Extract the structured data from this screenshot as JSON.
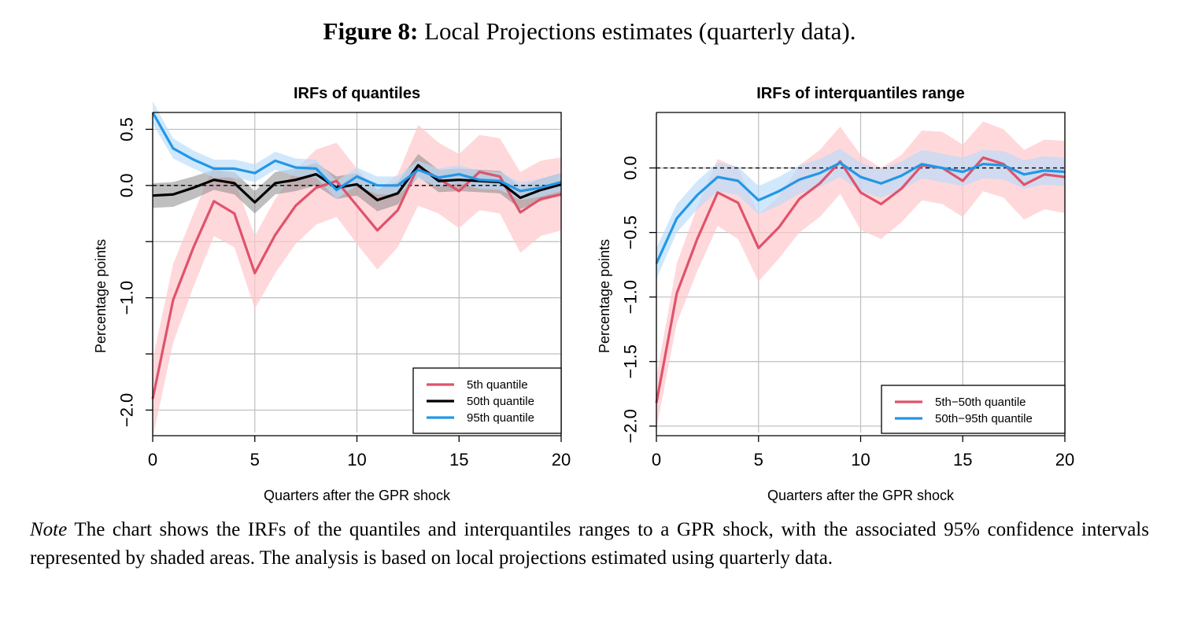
{
  "figure": {
    "label": "Figure 8:",
    "caption": "Local Projections estimates (quarterly data)."
  },
  "note": {
    "label": "Note",
    "text": "The chart shows the IRFs of the quantiles and interquantiles ranges to a GPR shock, with the associated 95% confidence intervals represented by shaded areas. The analysis is based on local projections estimated using quarterly data."
  },
  "colors": {
    "red": "#df536b",
    "black": "#000000",
    "blue": "#2297e6"
  },
  "chart_data": [
    {
      "type": "line",
      "title": "IRFs of quantiles",
      "xlabel": "Quarters after the GPR shock",
      "ylabel": "Percentage points",
      "xlim": [
        0,
        20
      ],
      "ylim": [
        -2.2,
        0.65
      ],
      "xticks": [
        0,
        5,
        10,
        15,
        20
      ],
      "yticks": [
        -2.0,
        -1.5,
        -1.0,
        -0.5,
        0.0,
        0.5
      ],
      "yticklabels": [
        "−2.0",
        "",
        "−1.0",
        "",
        "0.0",
        "0.5"
      ],
      "grid": true,
      "legend": "bottom-right",
      "x": [
        0,
        1,
        2,
        3,
        4,
        5,
        6,
        7,
        8,
        9,
        10,
        11,
        12,
        13,
        14,
        15,
        16,
        17,
        18,
        19,
        20
      ],
      "series": [
        {
          "name": "5th quantile",
          "color": "red",
          "values": [
            -1.9,
            -1.02,
            -0.55,
            -0.14,
            -0.25,
            -0.78,
            -0.44,
            -0.18,
            -0.02,
            0.04,
            -0.18,
            -0.4,
            -0.22,
            0.17,
            0.06,
            -0.05,
            0.12,
            0.08,
            -0.24,
            -0.12,
            -0.08
          ],
          "lower": [
            -2.25,
            -1.4,
            -0.9,
            -0.45,
            -0.55,
            -1.1,
            -0.78,
            -0.52,
            -0.35,
            -0.28,
            -0.52,
            -0.75,
            -0.55,
            -0.18,
            -0.25,
            -0.38,
            -0.22,
            -0.25,
            -0.6,
            -0.45,
            -0.4
          ],
          "upper": [
            -1.55,
            -0.7,
            -0.25,
            0.18,
            0.05,
            -0.45,
            -0.12,
            0.14,
            0.32,
            0.38,
            0.15,
            -0.05,
            0.1,
            0.54,
            0.38,
            0.28,
            0.45,
            0.42,
            0.12,
            0.22,
            0.25
          ]
        },
        {
          "name": "50th quantile",
          "color": "black",
          "values": [
            -0.09,
            -0.08,
            -0.02,
            0.05,
            0.02,
            -0.15,
            0.02,
            0.05,
            0.1,
            -0.02,
            0.01,
            -0.13,
            -0.07,
            0.18,
            0.04,
            0.05,
            0.04,
            0.03,
            -0.11,
            -0.04,
            0.01
          ],
          "lower": [
            -0.2,
            -0.19,
            -0.12,
            -0.04,
            -0.08,
            -0.25,
            -0.08,
            -0.05,
            0.0,
            -0.12,
            -0.09,
            -0.23,
            -0.17,
            0.08,
            -0.06,
            -0.05,
            -0.06,
            -0.07,
            -0.21,
            -0.14,
            -0.09
          ],
          "upper": [
            0.02,
            0.03,
            0.08,
            0.14,
            0.12,
            -0.05,
            0.12,
            0.15,
            0.2,
            0.08,
            0.11,
            -0.03,
            0.03,
            0.28,
            0.14,
            0.15,
            0.14,
            0.13,
            -0.01,
            0.06,
            0.11
          ]
        },
        {
          "name": "95th quantile",
          "color": "blue",
          "values": [
            0.65,
            0.33,
            0.23,
            0.15,
            0.15,
            0.11,
            0.22,
            0.16,
            0.15,
            -0.04,
            0.08,
            0.0,
            0.0,
            0.14,
            0.07,
            0.1,
            0.05,
            0.04,
            -0.05,
            -0.02,
            0.03
          ],
          "lower": [
            0.55,
            0.24,
            0.15,
            0.07,
            0.07,
            0.03,
            0.14,
            0.08,
            0.07,
            -0.12,
            0.0,
            -0.08,
            -0.08,
            0.06,
            -0.01,
            0.02,
            -0.03,
            -0.04,
            -0.13,
            -0.1,
            -0.05
          ],
          "upper": [
            0.75,
            0.42,
            0.31,
            0.23,
            0.23,
            0.19,
            0.3,
            0.24,
            0.23,
            0.04,
            0.16,
            0.08,
            0.08,
            0.22,
            0.15,
            0.18,
            0.13,
            0.12,
            0.03,
            0.06,
            0.11
          ]
        }
      ]
    },
    {
      "type": "line",
      "title": "IRFs of interquantiles range",
      "xlabel": "Quarters after the GPR shock",
      "ylabel": "Percentage points",
      "xlim": [
        0,
        20
      ],
      "ylim": [
        -2.05,
        0.43
      ],
      "xticks": [
        0,
        5,
        10,
        15,
        20
      ],
      "yticks": [
        -2.0,
        -1.5,
        -1.0,
        -0.5,
        0.0
      ],
      "yticklabels": [
        "−2.0",
        "−1.5",
        "−1.0",
        "−0.5",
        "0.0"
      ],
      "grid": true,
      "legend": "bottom-right",
      "x": [
        0,
        1,
        2,
        3,
        4,
        5,
        6,
        7,
        8,
        9,
        10,
        11,
        12,
        13,
        14,
        15,
        16,
        17,
        18,
        19,
        20
      ],
      "series": [
        {
          "name": "5th−50th quantile",
          "color": "red",
          "values": [
            -1.82,
            -0.97,
            -0.55,
            -0.19,
            -0.27,
            -0.62,
            -0.46,
            -0.24,
            -0.12,
            0.05,
            -0.19,
            -0.28,
            -0.16,
            0.02,
            0.0,
            -0.1,
            0.08,
            0.03,
            -0.13,
            -0.05,
            -0.07
          ],
          "lower": [
            -2.02,
            -1.2,
            -0.8,
            -0.45,
            -0.55,
            -0.88,
            -0.7,
            -0.5,
            -0.38,
            -0.2,
            -0.48,
            -0.55,
            -0.42,
            -0.25,
            -0.28,
            -0.38,
            -0.18,
            -0.23,
            -0.4,
            -0.32,
            -0.35
          ],
          "upper": [
            -1.62,
            -0.74,
            -0.3,
            0.07,
            0.0,
            -0.36,
            -0.22,
            0.02,
            0.14,
            0.32,
            0.1,
            0.0,
            0.1,
            0.29,
            0.28,
            0.18,
            0.36,
            0.3,
            0.14,
            0.22,
            0.21
          ]
        },
        {
          "name": "50th−95th quantile",
          "color": "blue",
          "values": [
            -0.74,
            -0.39,
            -0.21,
            -0.07,
            -0.1,
            -0.25,
            -0.18,
            -0.09,
            -0.04,
            0.04,
            -0.07,
            -0.12,
            -0.06,
            0.03,
            0.0,
            -0.03,
            0.03,
            0.02,
            -0.05,
            -0.02,
            -0.03
          ],
          "lower": [
            -0.86,
            -0.5,
            -0.32,
            -0.18,
            -0.21,
            -0.36,
            -0.29,
            -0.2,
            -0.15,
            -0.07,
            -0.18,
            -0.23,
            -0.17,
            -0.08,
            -0.11,
            -0.14,
            -0.08,
            -0.09,
            -0.16,
            -0.13,
            -0.14
          ],
          "upper": [
            -0.62,
            -0.28,
            -0.1,
            0.04,
            0.01,
            -0.14,
            -0.07,
            0.02,
            0.07,
            0.15,
            0.04,
            -0.01,
            0.05,
            0.14,
            0.11,
            0.08,
            0.14,
            0.13,
            0.06,
            0.09,
            0.08
          ]
        }
      ]
    }
  ]
}
